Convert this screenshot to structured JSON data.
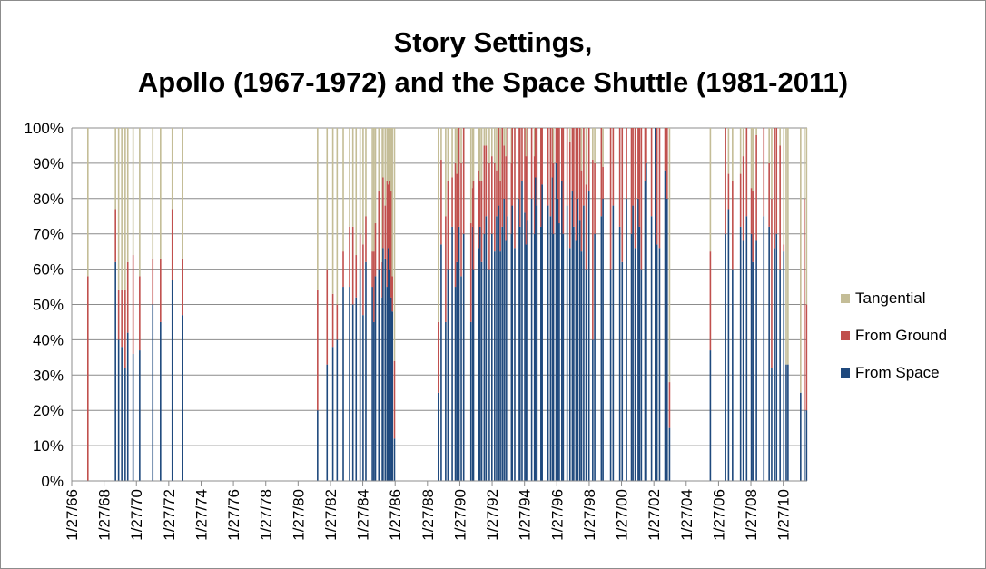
{
  "chart_data": {
    "type": "bar",
    "stacked": "percent",
    "title_lines": [
      "Story Settings,",
      "Apollo (1967-1972) and the Space Shuttle (1981-2011)"
    ],
    "xlabel": "",
    "ylabel": "",
    "y_ticks": [
      "0%",
      "10%",
      "20%",
      "30%",
      "40%",
      "50%",
      "60%",
      "70%",
      "80%",
      "90%",
      "100%"
    ],
    "x_ticks": [
      "1/27/66",
      "1/27/68",
      "1/27/70",
      "1/27/72",
      "1/27/74",
      "1/27/76",
      "1/27/78",
      "1/27/80",
      "1/27/82",
      "1/27/84",
      "1/27/86",
      "1/27/88",
      "1/27/90",
      "1/27/92",
      "1/27/94",
      "1/27/96",
      "1/27/98",
      "1/27/00",
      "1/27/02",
      "1/27/04",
      "1/27/06",
      "1/27/08",
      "1/27/10"
    ],
    "grid": true,
    "legend_position": "right",
    "colors": {
      "space": "#1f497d",
      "ground": "#c0504d",
      "tangential": "#c4bd97",
      "grid": "#8c8c8c",
      "axis": "#8c8c8c"
    },
    "series_names": [
      "Tangential",
      "From Ground",
      "From Space"
    ],
    "points": [
      {
        "date": "1967-01-27",
        "space": 0,
        "ground": 58
      },
      {
        "date": "1968-10-11",
        "space": 62,
        "ground": 15
      },
      {
        "date": "1968-12-21",
        "space": 40,
        "ground": 14
      },
      {
        "date": "1969-03-03",
        "space": 38,
        "ground": 16
      },
      {
        "date": "1969-05-18",
        "space": 32,
        "ground": 22
      },
      {
        "date": "1969-07-16",
        "space": 42,
        "ground": 20
      },
      {
        "date": "1969-11-14",
        "space": 36,
        "ground": 28
      },
      {
        "date": "1970-04-11",
        "space": 37,
        "ground": 21
      },
      {
        "date": "1971-01-31",
        "space": 50,
        "ground": 13
      },
      {
        "date": "1971-07-26",
        "space": 45,
        "ground": 18
      },
      {
        "date": "1972-04-16",
        "space": 57,
        "ground": 20
      },
      {
        "date": "1972-12-07",
        "space": 47,
        "ground": 16
      },
      {
        "date": "1981-04-12",
        "space": 20,
        "ground": 34
      },
      {
        "date": "1981-11-12",
        "space": 33,
        "ground": 27
      },
      {
        "date": "1982-03-22",
        "space": 38,
        "ground": 15
      },
      {
        "date": "1982-06-27",
        "space": 40,
        "ground": 10
      },
      {
        "date": "1982-11-11",
        "space": 55,
        "ground": 10
      },
      {
        "date": "1983-04-04",
        "space": 55,
        "ground": 17
      },
      {
        "date": "1983-06-18",
        "space": 50,
        "ground": 22
      },
      {
        "date": "1983-08-30",
        "space": 52,
        "ground": 12
      },
      {
        "date": "1983-11-28",
        "space": 60,
        "ground": 10
      },
      {
        "date": "1984-02-03",
        "space": 47,
        "ground": 20
      },
      {
        "date": "1984-04-06",
        "space": 62,
        "ground": 13
      },
      {
        "date": "1984-08-30",
        "space": 55,
        "ground": 10
      },
      {
        "date": "1984-10-05",
        "space": 45,
        "ground": 20
      },
      {
        "date": "1984-11-08",
        "space": 58,
        "ground": 15
      },
      {
        "date": "1985-01-24",
        "space": 60,
        "ground": 22
      },
      {
        "date": "1985-04-12",
        "space": 52,
        "ground": 10
      },
      {
        "date": "1985-04-29",
        "space": 66,
        "ground": 20
      },
      {
        "date": "1985-06-17",
        "space": 63,
        "ground": 15
      },
      {
        "date": "1985-07-29",
        "space": 55,
        "ground": 30
      },
      {
        "date": "1985-08-27",
        "space": 66,
        "ground": 18
      },
      {
        "date": "1985-10-03",
        "space": 60,
        "ground": 25
      },
      {
        "date": "1985-10-30",
        "space": 52,
        "ground": 30
      },
      {
        "date": "1985-11-26",
        "space": 48,
        "ground": 10
      },
      {
        "date": "1986-01-12",
        "space": 12,
        "ground": 22
      },
      {
        "date": "1988-09-29",
        "space": 25,
        "ground": 20
      },
      {
        "date": "1988-12-02",
        "space": 67,
        "ground": 24
      },
      {
        "date": "1989-03-13",
        "space": 45,
        "ground": 30
      },
      {
        "date": "1989-05-04",
        "space": 60,
        "ground": 25
      },
      {
        "date": "1989-08-08",
        "space": 72,
        "ground": 14
      },
      {
        "date": "1989-10-18",
        "space": 55,
        "ground": 35
      },
      {
        "date": "1989-11-22",
        "space": 62,
        "ground": 25
      },
      {
        "date": "1990-01-09",
        "space": 72,
        "ground": 28
      },
      {
        "date": "1990-02-28",
        "space": 58,
        "ground": 32
      },
      {
        "date": "1990-04-24",
        "space": 70,
        "ground": 30
      },
      {
        "date": "1990-10-06",
        "space": 45,
        "ground": 28
      },
      {
        "date": "1990-11-15",
        "space": 72,
        "ground": 11
      },
      {
        "date": "1990-12-02",
        "space": 60,
        "ground": 25
      },
      {
        "date": "1991-04-05",
        "space": 66,
        "ground": 22
      },
      {
        "date": "1991-04-28",
        "space": 72,
        "ground": 13
      },
      {
        "date": "1991-06-05",
        "space": 62,
        "ground": 23
      },
      {
        "date": "1991-08-02",
        "space": 70,
        "ground": 25
      },
      {
        "date": "1991-09-12",
        "space": 75,
        "ground": 20
      },
      {
        "date": "1991-11-24",
        "space": 60,
        "ground": 30
      },
      {
        "date": "1992-01-22",
        "space": 70,
        "ground": 22
      },
      {
        "date": "1992-03-24",
        "space": 65,
        "ground": 25
      },
      {
        "date": "1992-05-07",
        "space": 75,
        "ground": 13
      },
      {
        "date": "1992-06-25",
        "space": 78,
        "ground": 22
      },
      {
        "date": "1992-07-31",
        "space": 65,
        "ground": 20
      },
      {
        "date": "1992-09-12",
        "space": 72,
        "ground": 28
      },
      {
        "date": "1992-10-22",
        "space": 80,
        "ground": 15
      },
      {
        "date": "1992-12-02",
        "space": 68,
        "ground": 24
      },
      {
        "date": "1993-01-13",
        "space": 75,
        "ground": 25
      },
      {
        "date": "1993-04-08",
        "space": 70,
        "ground": 20
      },
      {
        "date": "1993-04-26",
        "space": 78,
        "ground": 22
      },
      {
        "date": "1993-06-21",
        "space": 66,
        "ground": 34
      },
      {
        "date": "1993-09-12",
        "space": 80,
        "ground": 20
      },
      {
        "date": "1993-10-18",
        "space": 72,
        "ground": 28
      },
      {
        "date": "1993-12-02",
        "space": 85,
        "ground": 15
      },
      {
        "date": "1994-02-03",
        "space": 76,
        "ground": 24
      },
      {
        "date": "1994-03-04",
        "space": 67,
        "ground": 25
      },
      {
        "date": "1994-04-09",
        "space": 74,
        "ground": 26
      },
      {
        "date": "1994-07-08",
        "space": 80,
        "ground": 20
      },
      {
        "date": "1994-09-09",
        "space": 70,
        "ground": 22
      },
      {
        "date": "1994-09-30",
        "space": 86,
        "ground": 14
      },
      {
        "date": "1994-11-03",
        "space": 78,
        "ground": 22
      },
      {
        "date": "1995-02-03",
        "space": 72,
        "ground": 28
      },
      {
        "date": "1995-03-02",
        "space": 84,
        "ground": 16
      },
      {
        "date": "1995-06-27",
        "space": 66,
        "ground": 34
      },
      {
        "date": "1995-07-13",
        "space": 78,
        "ground": 22
      },
      {
        "date": "1995-09-07",
        "space": 75,
        "ground": 25
      },
      {
        "date": "1995-10-20",
        "space": 86,
        "ground": 14
      },
      {
        "date": "1995-11-12",
        "space": 70,
        "ground": 20
      },
      {
        "date": "1996-01-11",
        "space": 90,
        "ground": 10
      },
      {
        "date": "1996-02-22",
        "space": 80,
        "ground": 20
      },
      {
        "date": "1996-03-22",
        "space": 73,
        "ground": 27
      },
      {
        "date": "1996-05-19",
        "space": 85,
        "ground": 15
      },
      {
        "date": "1996-06-20",
        "space": 70,
        "ground": 30
      },
      {
        "date": "1996-09-16",
        "space": 78,
        "ground": 22
      },
      {
        "date": "1996-11-19",
        "space": 66,
        "ground": 30
      },
      {
        "date": "1997-01-12",
        "space": 82,
        "ground": 18
      },
      {
        "date": "1997-02-11",
        "space": 72,
        "ground": 28
      },
      {
        "date": "1997-04-04",
        "space": 68,
        "ground": 32
      },
      {
        "date": "1997-05-15",
        "space": 80,
        "ground": 20
      },
      {
        "date": "1997-07-01",
        "space": 74,
        "ground": 26
      },
      {
        "date": "1997-08-07",
        "space": 65,
        "ground": 23
      },
      {
        "date": "1997-09-25",
        "space": 78,
        "ground": 22
      },
      {
        "date": "1997-11-19",
        "space": 60,
        "ground": 24
      },
      {
        "date": "1998-01-22",
        "space": 82,
        "ground": 18
      },
      {
        "date": "1998-04-17",
        "space": 40,
        "ground": 51
      },
      {
        "date": "1998-06-02",
        "space": 70,
        "ground": 20
      },
      {
        "date": "1998-10-29",
        "space": 75,
        "ground": 25
      },
      {
        "date": "1998-12-04",
        "space": 80,
        "ground": 9
      },
      {
        "date": "1999-05-27",
        "space": 60,
        "ground": 40
      },
      {
        "date": "1999-07-23",
        "space": 78,
        "ground": 22
      },
      {
        "date": "1999-12-19",
        "space": 72,
        "ground": 28
      },
      {
        "date": "2000-02-11",
        "space": 62,
        "ground": 38
      },
      {
        "date": "2000-05-19",
        "space": 80,
        "ground": 20
      },
      {
        "date": "2000-09-08",
        "space": 70,
        "ground": 30
      },
      {
        "date": "2000-10-11",
        "space": 78,
        "ground": 22
      },
      {
        "date": "2000-11-30",
        "space": 66,
        "ground": 34
      },
      {
        "date": "2001-02-07",
        "space": 80,
        "ground": 20
      },
      {
        "date": "2001-03-08",
        "space": 72,
        "ground": 28
      },
      {
        "date": "2001-04-19",
        "space": 60,
        "ground": 40
      },
      {
        "date": "2001-07-12",
        "space": 85,
        "ground": 15
      },
      {
        "date": "2001-08-10",
        "space": 90,
        "ground": 10
      },
      {
        "date": "2001-12-05",
        "space": 75,
        "ground": 25
      },
      {
        "date": "2002-03-01",
        "space": 100,
        "ground": 0
      },
      {
        "date": "2002-04-08",
        "space": 67,
        "ground": 33
      },
      {
        "date": "2002-06-05",
        "space": 66,
        "ground": 34
      },
      {
        "date": "2002-10-07",
        "space": 88,
        "ground": 12
      },
      {
        "date": "2002-11-23",
        "space": 80,
        "ground": 20
      },
      {
        "date": "2003-01-16",
        "space": 15,
        "ground": 13
      },
      {
        "date": "2005-07-26",
        "space": 37,
        "ground": 28
      },
      {
        "date": "2006-07-04",
        "space": 70,
        "ground": 30
      },
      {
        "date": "2006-09-09",
        "space": 77,
        "ground": 10
      },
      {
        "date": "2006-12-09",
        "space": 60,
        "ground": 25
      },
      {
        "date": "2007-06-08",
        "space": 72,
        "ground": 15
      },
      {
        "date": "2007-08-08",
        "space": 68,
        "ground": 24
      },
      {
        "date": "2007-10-23",
        "space": 75,
        "ground": 25
      },
      {
        "date": "2008-02-07",
        "space": 70,
        "ground": 13
      },
      {
        "date": "2008-03-11",
        "space": 62,
        "ground": 20
      },
      {
        "date": "2008-05-31",
        "space": 68,
        "ground": 30
      },
      {
        "date": "2008-11-14",
        "space": 75,
        "ground": 25
      },
      {
        "date": "2009-03-15",
        "space": 72,
        "ground": 18
      },
      {
        "date": "2009-05-11",
        "space": 32,
        "ground": 48
      },
      {
        "date": "2009-07-15",
        "space": 66,
        "ground": 34
      },
      {
        "date": "2009-08-28",
        "space": 70,
        "ground": 30
      },
      {
        "date": "2009-11-16",
        "space": 60,
        "ground": 35
      },
      {
        "date": "2010-02-08",
        "space": 65,
        "ground": 2
      },
      {
        "date": "2010-04-05",
        "space": 33,
        "ground": 0
      },
      {
        "date": "2010-05-14",
        "space": 33,
        "ground": 0
      },
      {
        "date": "2011-02-24",
        "space": 25,
        "ground": 0
      },
      {
        "date": "2011-05-16",
        "space": 20,
        "ground": 60
      },
      {
        "date": "2011-07-08",
        "space": 20,
        "ground": 30
      }
    ]
  },
  "legend": {
    "items": [
      {
        "label": "Tangential",
        "color": "#c4bd97"
      },
      {
        "label": "From Ground",
        "color": "#c0504d"
      },
      {
        "label": "From Space",
        "color": "#1f497d"
      }
    ]
  }
}
